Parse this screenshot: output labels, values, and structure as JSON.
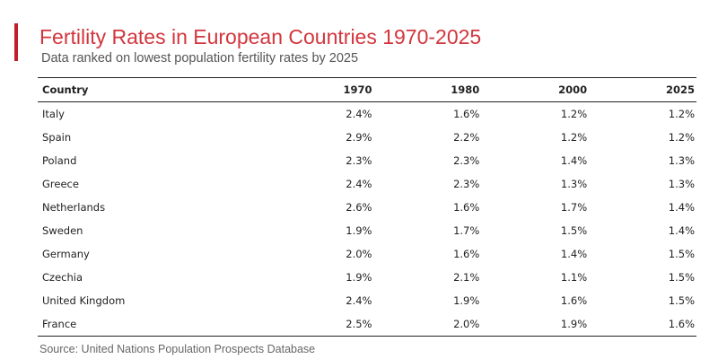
{
  "header": {
    "title": "Fertility Rates in European Countries 1970-2025",
    "subtitle": "Data ranked on lowest population fertility rates by 2025"
  },
  "colors": {
    "accent": "#c21f2a",
    "title": "#d2363d",
    "rule": "#222222"
  },
  "chart_data": {
    "type": "table",
    "title": "Fertility Rates in European Countries 1970-2025",
    "subtitle": "Data ranked on lowest population fertility rates by 2025",
    "columns": [
      "Country",
      "1970",
      "1980",
      "2000",
      "2025"
    ],
    "rows": [
      [
        "Italy",
        "2.4%",
        "1.6%",
        "1.2%",
        "1.2%"
      ],
      [
        "Spain",
        "2.9%",
        "2.2%",
        "1.2%",
        "1.2%"
      ],
      [
        "Poland",
        "2.3%",
        "2.3%",
        "1.4%",
        "1.3%"
      ],
      [
        "Greece",
        "2.4%",
        "2.3%",
        "1.3%",
        "1.3%"
      ],
      [
        "Netherlands",
        "2.6%",
        "1.6%",
        "1.7%",
        "1.4%"
      ],
      [
        "Sweden",
        "1.9%",
        "1.7%",
        "1.5%",
        "1.4%"
      ],
      [
        "Germany",
        "2.0%",
        "1.6%",
        "1.4%",
        "1.5%"
      ],
      [
        "Czechia",
        "1.9%",
        "2.1%",
        "1.1%",
        "1.5%"
      ],
      [
        "United Kingdom",
        "2.4%",
        "1.9%",
        "1.6%",
        "1.5%"
      ],
      [
        "France",
        "2.5%",
        "2.0%",
        "1.9%",
        "1.6%"
      ]
    ],
    "source": "Source: United Nations Population Prospects Database"
  }
}
